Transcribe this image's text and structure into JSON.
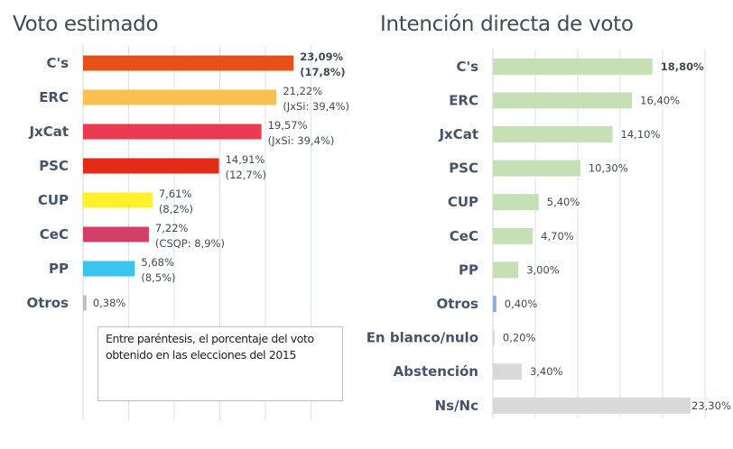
{
  "chart_data": [
    {
      "type": "bar",
      "orientation": "horizontal",
      "title": "Voto estimado",
      "categories": [
        "C's",
        "ERC",
        "JxCat",
        "PSC",
        "CUP",
        "CeC",
        "PP",
        "Otros"
      ],
      "values": [
        23.09,
        21.22,
        19.57,
        14.91,
        7.61,
        7.22,
        5.68,
        0.38
      ],
      "value_labels": [
        "23,09%",
        "21,22%",
        "19,57%",
        "14,91%",
        "7,61%",
        "7,22%",
        "5,68%",
        "0,38%"
      ],
      "secondary_labels": [
        "(17,8%)",
        "(JxSi: 39,4%)",
        "(JxSi: 39,4%)",
        "(12,7%)",
        "(8,2%)",
        "(CSQP: 8,9%)",
        "(8,5%)",
        ""
      ],
      "bold_labels": [
        true,
        false,
        false,
        false,
        false,
        false,
        false,
        false
      ],
      "colors": [
        "#e8501a",
        "#f9c152",
        "#ea3b55",
        "#e52a18",
        "#fff02e",
        "#d43f68",
        "#3ac5ef",
        "#bfbfbf"
      ],
      "xlim": [
        0,
        25
      ],
      "grid_step": 5,
      "grid": true,
      "annotation": "Entre paréntesis, el porcentaje del voto obtenido en las elecciones del 2015",
      "xlabel": "",
      "ylabel": ""
    },
    {
      "type": "bar",
      "orientation": "horizontal",
      "title": "Intención directa de voto",
      "categories": [
        "C's",
        "ERC",
        "JxCat",
        "PSC",
        "CUP",
        "CeC",
        "PP",
        "Otros",
        "En blanco/nulo",
        "Abstención",
        "Ns/Nc"
      ],
      "values": [
        18.8,
        16.4,
        14.1,
        10.3,
        5.4,
        4.7,
        3.0,
        0.4,
        0.2,
        3.4,
        23.3
      ],
      "value_labels": [
        "18,80%",
        "16,40%",
        "14,10%",
        "10,30%",
        "5,40%",
        "4,70%",
        "3,00%",
        "0,40%",
        "0,20%",
        "3,40%",
        "23,30%"
      ],
      "bold_labels": [
        true,
        false,
        false,
        false,
        false,
        false,
        false,
        false,
        false,
        false,
        false
      ],
      "colors": [
        "#c5e0b4",
        "#c5e0b4",
        "#c5e0b4",
        "#c5e0b4",
        "#c5e0b4",
        "#c5e0b4",
        "#c5e0b4",
        "#8faadc",
        "#d9d9d9",
        "#d9d9d9",
        "#d9d9d9"
      ],
      "xlim": [
        0,
        25
      ],
      "grid_step": 5,
      "grid": true,
      "xlabel": "",
      "ylabel": ""
    }
  ]
}
